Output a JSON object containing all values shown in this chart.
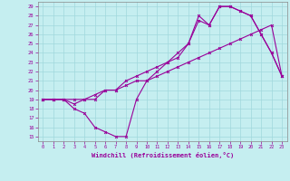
{
  "xlabel": "Windchill (Refroidissement éolien,°C)",
  "bg_color": "#c5eef0",
  "line_color": "#990099",
  "grid_color": "#a0d8dc",
  "xlim": [
    -0.5,
    23.5
  ],
  "ylim": [
    14.5,
    29.5
  ],
  "xticks": [
    0,
    1,
    2,
    3,
    4,
    5,
    6,
    7,
    8,
    9,
    10,
    11,
    12,
    13,
    14,
    15,
    16,
    17,
    18,
    19,
    20,
    21,
    22,
    23
  ],
  "yticks": [
    15,
    16,
    17,
    18,
    19,
    20,
    21,
    22,
    23,
    24,
    25,
    26,
    27,
    28,
    29
  ],
  "line1_x": [
    0,
    1,
    2,
    3,
    4,
    5,
    6,
    7,
    8,
    9,
    10,
    11,
    12,
    13,
    14,
    15,
    16,
    17,
    18,
    19,
    20,
    21,
    22,
    23
  ],
  "line1_y": [
    19,
    19,
    19,
    18,
    17.5,
    16,
    15.5,
    15,
    15,
    19,
    21,
    22,
    23,
    23.5,
    25,
    27.5,
    27,
    29,
    29,
    28.5,
    28,
    26,
    24,
    21.5
  ],
  "line2_x": [
    0,
    1,
    2,
    3,
    4,
    5,
    6,
    7,
    8,
    9,
    10,
    11,
    12,
    13,
    14,
    15,
    16,
    17,
    18,
    19,
    20,
    21,
    22,
    23
  ],
  "line2_y": [
    19,
    19,
    19,
    19,
    19,
    19.5,
    20,
    20,
    20.5,
    21,
    21,
    21.5,
    22,
    22.5,
    23,
    23.5,
    24,
    24.5,
    25,
    25.5,
    26,
    26.5,
    27,
    21.5
  ],
  "line3_x": [
    0,
    1,
    2,
    3,
    4,
    5,
    6,
    7,
    8,
    9,
    10,
    11,
    12,
    13,
    14,
    15,
    16,
    17,
    18,
    19,
    20,
    21,
    22,
    23
  ],
  "line3_y": [
    19,
    19,
    19,
    18.5,
    19,
    19,
    20,
    20,
    21,
    21.5,
    22,
    22.5,
    23,
    24,
    25,
    28,
    27,
    29,
    29,
    28.5,
    28,
    26,
    24,
    21.5
  ]
}
